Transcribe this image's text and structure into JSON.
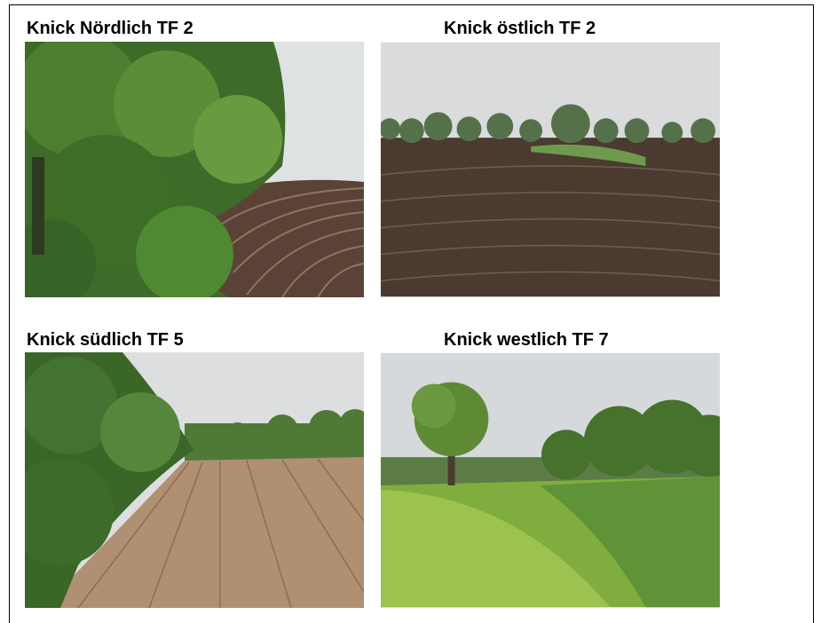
{
  "photos": [
    {
      "caption": "Knick Nördlich TF 2"
    },
    {
      "caption": "Knick östlich TF 2"
    },
    {
      "caption": "Knick südlich TF 5"
    },
    {
      "caption": "Knick westlich TF 7"
    }
  ]
}
